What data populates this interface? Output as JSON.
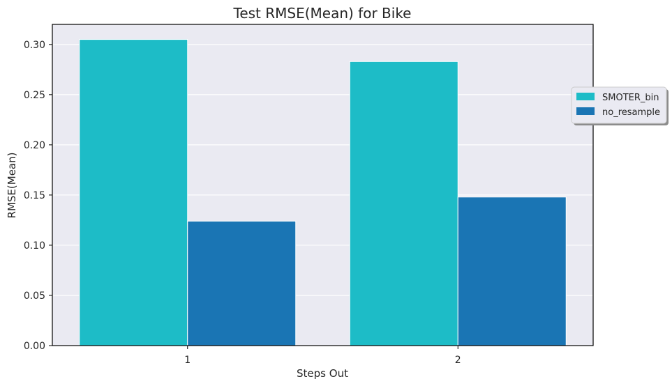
{
  "chart_data": {
    "type": "bar",
    "title": "Test RMSE(Mean) for Bike",
    "xlabel": "Steps Out",
    "ylabel": "RMSE(Mean)",
    "categories": [
      "1",
      "2"
    ],
    "series": [
      {
        "name": "SMOTER_bin",
        "values": [
          0.305,
          0.283
        ],
        "color": "#1dbcc7"
      },
      {
        "name": "no_resample",
        "values": [
          0.124,
          0.148
        ],
        "color": "#1a75b4"
      }
    ],
    "ylim": [
      0,
      0.32
    ],
    "yticks": [
      0.0,
      0.05,
      0.1,
      0.15,
      0.2,
      0.25,
      0.3
    ],
    "ytick_labels": [
      "0.00",
      "0.05",
      "0.10",
      "0.15",
      "0.20",
      "0.25",
      "0.30"
    ],
    "grid": true,
    "legend_position": "right"
  }
}
